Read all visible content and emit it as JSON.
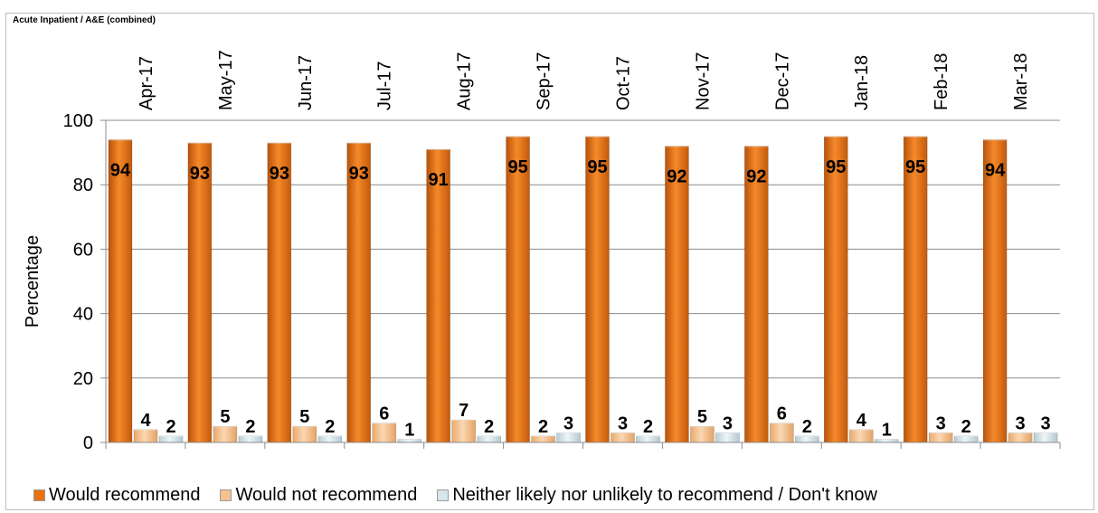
{
  "chart_data": {
    "type": "bar",
    "title": "Acute Inpatient / A&E (combined)",
    "xlabel": "",
    "ylabel": "Percentage",
    "ylim": [
      0,
      100
    ],
    "yticks": [
      0,
      20,
      40,
      60,
      80,
      100
    ],
    "grid": true,
    "legend_position": "bottom",
    "categories": [
      "Apr-17",
      "May-17",
      "Jun-17",
      "Jul-17",
      "Aug-17",
      "Sep-17",
      "Oct-17",
      "Nov-17",
      "Dec-17",
      "Jan-18",
      "Feb-18",
      "Mar-18"
    ],
    "series": [
      {
        "name": "Would recommend",
        "color": "#e8730f",
        "values": [
          94,
          93,
          93,
          93,
          91,
          95,
          95,
          92,
          92,
          95,
          95,
          94
        ]
      },
      {
        "name": "Would not recommend",
        "color": "#f6c18f",
        "values": [
          4,
          5,
          5,
          6,
          7,
          2,
          3,
          5,
          6,
          4,
          3,
          3
        ]
      },
      {
        "name": "Neither likely nor unlikely to recommend / Don't know",
        "color": "#d6e6ec",
        "values": [
          2,
          2,
          2,
          1,
          2,
          3,
          2,
          3,
          2,
          1,
          2,
          3
        ]
      }
    ]
  }
}
